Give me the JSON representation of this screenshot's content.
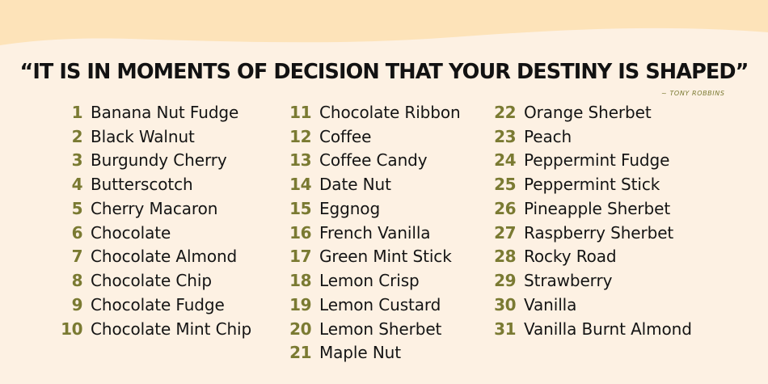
{
  "colors": {
    "background": "#fdf1e3",
    "wave": "#fde3b9",
    "number": "#7a7a32",
    "text": "#141414"
  },
  "quote": "“IT IS IN MOMENTS OF DECISION THAT YOUR DESTINY IS SHAPED”",
  "author": "~ TONY ROBBINS",
  "columns": [
    {
      "items": [
        {
          "num": "1",
          "name": "Banana Nut Fudge"
        },
        {
          "num": "2",
          "name": "Black Walnut"
        },
        {
          "num": "3",
          "name": "Burgundy Cherry"
        },
        {
          "num": "4",
          "name": "Butterscotch"
        },
        {
          "num": "5",
          "name": "Cherry Macaron"
        },
        {
          "num": "6",
          "name": "Chocolate"
        },
        {
          "num": "7",
          "name": "Chocolate Almond"
        },
        {
          "num": "8",
          "name": "Chocolate Chip"
        },
        {
          "num": "9",
          "name": "Chocolate Fudge"
        },
        {
          "num": "10",
          "name": "Chocolate Mint Chip"
        }
      ]
    },
    {
      "items": [
        {
          "num": "11",
          "name": "Chocolate Ribbon"
        },
        {
          "num": "12",
          "name": "Coffee"
        },
        {
          "num": "13",
          "name": "Coffee Candy"
        },
        {
          "num": "14",
          "name": "Date Nut"
        },
        {
          "num": "15",
          "name": "Eggnog"
        },
        {
          "num": "16",
          "name": "French Vanilla"
        },
        {
          "num": "17",
          "name": "Green Mint Stick"
        },
        {
          "num": "18",
          "name": "Lemon Crisp"
        },
        {
          "num": "19",
          "name": "Lemon Custard"
        },
        {
          "num": "20",
          "name": "Lemon Sherbet"
        },
        {
          "num": "21",
          "name": "Maple Nut"
        }
      ]
    },
    {
      "items": [
        {
          "num": "22",
          "name": "Orange Sherbet"
        },
        {
          "num": "23",
          "name": "Peach"
        },
        {
          "num": "24",
          "name": "Peppermint Fudge"
        },
        {
          "num": "25",
          "name": "Peppermint Stick"
        },
        {
          "num": "26",
          "name": "Pineapple Sherbet"
        },
        {
          "num": "27",
          "name": "Raspberry Sherbet"
        },
        {
          "num": "28",
          "name": "Rocky Road"
        },
        {
          "num": "29",
          "name": "Strawberry"
        },
        {
          "num": "30",
          "name": "Vanilla"
        },
        {
          "num": "31",
          "name": "Vanilla Burnt Almond"
        }
      ]
    }
  ]
}
